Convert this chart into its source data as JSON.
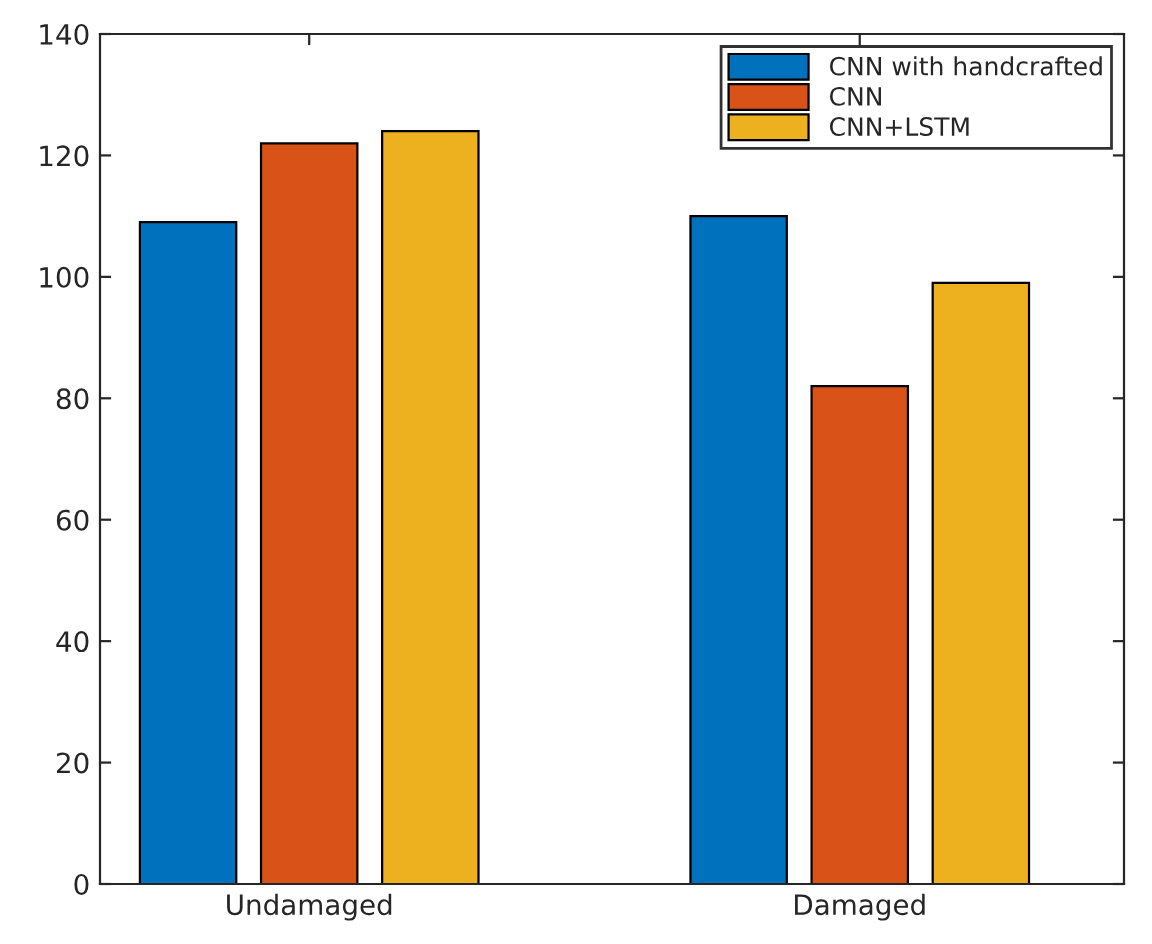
{
  "chart_data": {
    "type": "bar",
    "categories": [
      "Undamaged",
      "Damaged"
    ],
    "series": [
      {
        "name": "CNN with handcrafted",
        "color": "#0072bd",
        "values": [
          109,
          110
        ]
      },
      {
        "name": "CNN",
        "color": "#d95319",
        "values": [
          122,
          82
        ]
      },
      {
        "name": "CNN+LSTM",
        "color": "#edb120",
        "values": [
          124,
          99
        ]
      }
    ],
    "ylim": [
      0,
      140
    ],
    "yticks": [
      0,
      20,
      40,
      60,
      80,
      100,
      120,
      140
    ],
    "grid": false,
    "legend": "top right"
  }
}
